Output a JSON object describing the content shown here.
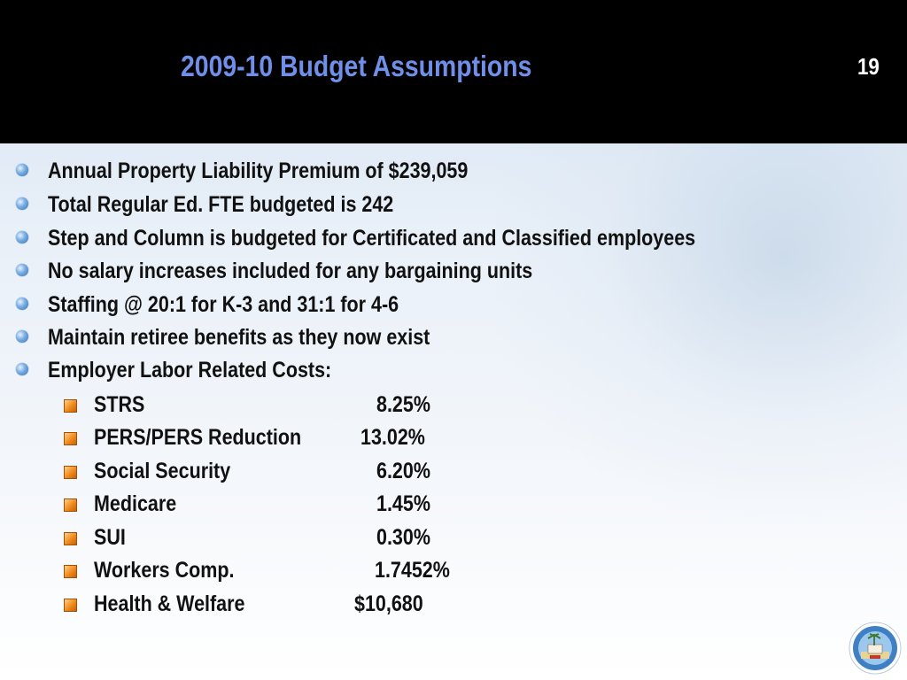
{
  "slide": {
    "title": "2009-10 Budget Assumptions",
    "page_number": "19"
  },
  "bullets": [
    "Annual Property Liability Premium of $239,059",
    "Total Regular Ed. FTE budgeted is 242",
    "Step and Column is budgeted for Certificated and Classified employees",
    "No salary increases included for any bargaining units",
    "Staffing @ 20:1 for K-3 and 31:1 for 4-6",
    "Maintain retiree benefits as they now exist",
    "Employer Labor Related Costs:"
  ],
  "costs": [
    {
      "label": "STRS",
      "value": "8.25%"
    },
    {
      "label": "PERS/PERS Reduction",
      "value": "13.02%"
    },
    {
      "label": "Social Security",
      "value": "6.20%"
    },
    {
      "label": "Medicare",
      "value": "1.45%"
    },
    {
      "label": "SUI",
      "value": "0.30%"
    },
    {
      "label": "Workers Comp.",
      "value": "1.7452%"
    },
    {
      "label": "Health & Welfare",
      "value": "$10,680"
    }
  ],
  "colors": {
    "title": "#6f8fe8",
    "header_bg": "#000000",
    "text": "#111111"
  },
  "icons": {
    "level1_bullet": "blue-sphere-bullet-icon",
    "level2_bullet": "orange-square-bullet-icon",
    "logo": "school-district-seal-icon"
  }
}
